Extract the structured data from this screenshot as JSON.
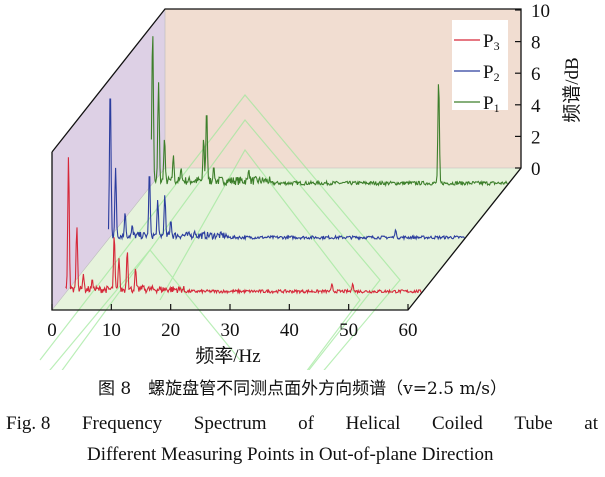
{
  "chart_data": {
    "type": "line",
    "style": "3d-waterfall",
    "xlabel": "频率/Hz",
    "ylabel": "频谱/dB",
    "xlim": [
      0,
      60
    ],
    "ylim": [
      0,
      10
    ],
    "xticks": [
      "0",
      "10",
      "20",
      "30",
      "40",
      "50",
      "60"
    ],
    "yticks": [
      "0",
      "2",
      "4",
      "6",
      "8",
      "10"
    ],
    "legend": {
      "placement": "top-right",
      "entries": [
        {
          "label": "P",
          "sub": "3",
          "color": "#d62839"
        },
        {
          "label": "P",
          "sub": "2",
          "color": "#2b3d9e"
        },
        {
          "label": "P",
          "sub": "1",
          "color": "#3d7f2b"
        }
      ]
    },
    "series": [
      {
        "name": "P3",
        "color": "#d62839",
        "depth": 0.12,
        "noise_floor": 0.25,
        "peaks": [
          [
            0.5,
            8.7
          ],
          [
            1.9,
            4.2
          ],
          [
            3,
            1.2
          ],
          [
            4.5,
            0.9
          ],
          [
            8.2,
            3.7
          ],
          [
            9,
            2.2
          ],
          [
            10.4,
            2.7
          ],
          [
            11.8,
            1.6
          ],
          [
            13,
            0.5
          ],
          [
            44.9,
            0.6
          ],
          [
            48.4,
            0.6
          ]
        ]
      },
      {
        "name": "P2",
        "color": "#2b3d9e",
        "depth": 0.5,
        "noise_floor": 0.25,
        "peaks": [
          [
            0.3,
            9.9
          ],
          [
            1.2,
            4.5
          ],
          [
            2.8,
            1.7
          ],
          [
            4,
            0.9
          ],
          [
            6.9,
            4.4
          ],
          [
            8.3,
            2.5
          ],
          [
            9.5,
            2.8
          ],
          [
            10.5,
            1.2
          ],
          [
            14.5,
            0.5
          ],
          [
            48.4,
            0.6
          ]
        ]
      },
      {
        "name": "P1",
        "color": "#3d7f2b",
        "depth": 0.88,
        "noise_floor": 0.3,
        "peaks": [
          [
            0.2,
            9.9
          ],
          [
            1.2,
            6.5
          ],
          [
            2.2,
            3.0
          ],
          [
            3.7,
            1.9
          ],
          [
            5,
            1.1
          ],
          [
            8.8,
            3.0
          ],
          [
            9.3,
            4.9
          ],
          [
            10.5,
            1.2
          ],
          [
            16.4,
            1.0
          ],
          [
            48.4,
            6.7
          ]
        ]
      }
    ],
    "colors": {
      "back_wall": "#f1ddd1",
      "side_wall": "#ddd0e5",
      "floor": "#e6f3dc"
    }
  },
  "caption": {
    "zh": "图 8　螺旋盘管不同测点面外方向频谱（v=2.5 m/s）",
    "en_line1_words": [
      "Fig. 8",
      "Frequency",
      "Spectrum",
      "of",
      "Helical",
      "Coiled",
      "Tube",
      "at"
    ],
    "en_line2": "Different Measuring Points in Out-of-plane Direction"
  }
}
